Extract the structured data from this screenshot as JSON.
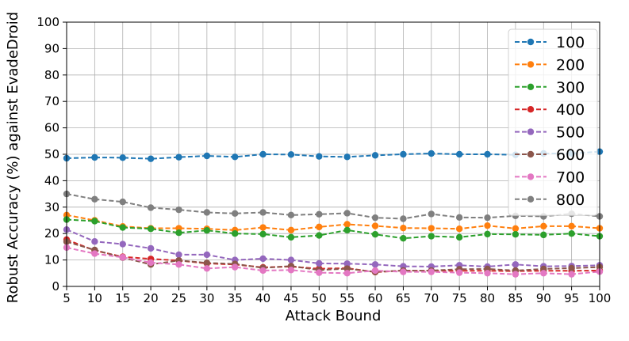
{
  "chart_data": {
    "type": "line",
    "xlabel": "Attack Bound",
    "ylabel": "Robust Accuracy (%) against EvadeDroid",
    "xlim": [
      5,
      100
    ],
    "ylim": [
      0,
      100
    ],
    "x_ticks": [
      5,
      10,
      15,
      20,
      25,
      30,
      35,
      40,
      45,
      50,
      55,
      60,
      65,
      70,
      75,
      80,
      85,
      90,
      95,
      100
    ],
    "y_ticks": [
      0,
      10,
      20,
      30,
      40,
      50,
      60,
      70,
      80,
      90,
      100
    ],
    "grid": true,
    "legend_position": "top-right",
    "x": [
      5,
      10,
      15,
      20,
      25,
      30,
      35,
      40,
      45,
      50,
      55,
      60,
      65,
      70,
      75,
      80,
      85,
      90,
      95,
      100
    ],
    "series": [
      {
        "name": "100",
        "color": "#1f77b4",
        "values": [
          48.5,
          48.8,
          48.7,
          48.3,
          48.9,
          49.4,
          49.0,
          50.0,
          49.9,
          49.2,
          49.0,
          49.6,
          50.0,
          50.3,
          50.0,
          50.0,
          49.8,
          50.3,
          50.3,
          51.0
        ]
      },
      {
        "name": "200",
        "color": "#ff7f0e",
        "values": [
          27.0,
          25.0,
          22.7,
          22.0,
          22.0,
          21.8,
          21.3,
          22.3,
          21.3,
          22.5,
          23.5,
          22.9,
          22.1,
          22.0,
          21.8,
          23.0,
          21.9,
          22.8,
          22.8,
          22.0
        ]
      },
      {
        "name": "300",
        "color": "#2ca02c",
        "values": [
          25.3,
          24.7,
          22.3,
          21.8,
          20.3,
          21.2,
          20.0,
          19.8,
          18.6,
          19.3,
          21.3,
          19.7,
          18.2,
          19.0,
          18.6,
          19.8,
          19.7,
          19.5,
          20.0,
          19.0
        ]
      },
      {
        "name": "400",
        "color": "#d62728",
        "values": [
          17.7,
          13.6,
          11.2,
          10.4,
          9.8,
          8.7,
          8.3,
          7.2,
          7.5,
          6.7,
          6.9,
          5.4,
          6.0,
          5.9,
          5.9,
          5.9,
          5.8,
          5.9,
          5.9,
          6.0
        ]
      },
      {
        "name": "500",
        "color": "#9467bd",
        "values": [
          21.5,
          17.0,
          16.0,
          14.4,
          12.0,
          12.0,
          10.0,
          10.5,
          10.0,
          8.7,
          8.6,
          8.3,
          7.6,
          7.5,
          8.0,
          7.5,
          8.3,
          7.6,
          7.7,
          8.0
        ]
      },
      {
        "name": "600",
        "color": "#8c564b",
        "values": [
          16.9,
          13.8,
          10.9,
          8.3,
          9.8,
          8.9,
          8.5,
          7.0,
          7.7,
          6.2,
          6.7,
          5.5,
          6.0,
          6.0,
          6.5,
          6.6,
          6.0,
          6.6,
          6.9,
          7.3
        ]
      },
      {
        "name": "700",
        "color": "#e377c2",
        "values": [
          14.7,
          12.4,
          11.0,
          9.0,
          8.3,
          6.8,
          7.3,
          6.0,
          6.2,
          5.2,
          5.0,
          6.0,
          5.5,
          5.5,
          5.2,
          5.0,
          4.6,
          5.0,
          4.6,
          5.6
        ]
      },
      {
        "name": "800",
        "color": "#7f7f7f",
        "values": [
          35.0,
          33.0,
          32.0,
          29.8,
          29.0,
          28.0,
          27.6,
          28.0,
          27.0,
          27.3,
          27.7,
          26.0,
          25.6,
          27.4,
          26.1,
          26.0,
          26.7,
          26.5,
          27.5,
          26.5
        ]
      }
    ]
  }
}
